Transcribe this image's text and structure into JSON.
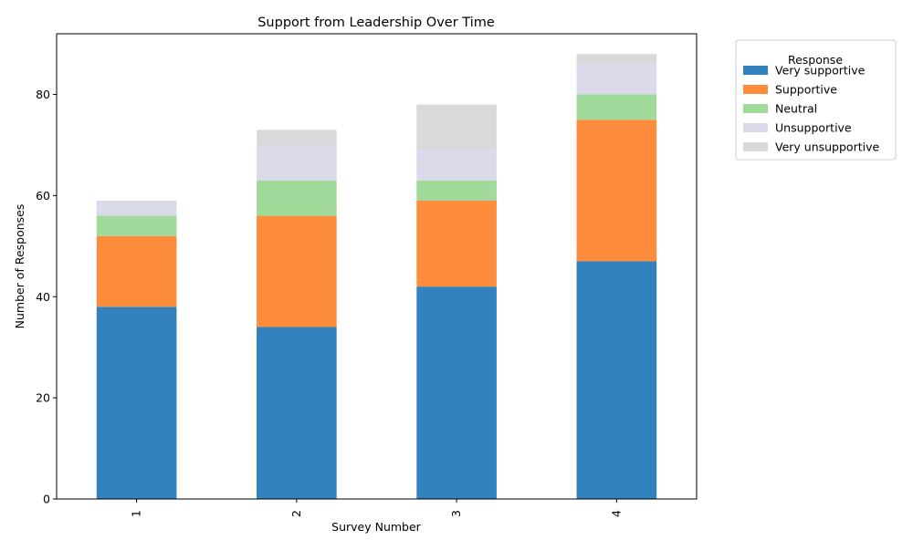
{
  "chart_data": {
    "type": "bar",
    "stacked": true,
    "title": "Support from Leadership Over Time",
    "xlabel": "Survey Number",
    "ylabel": "Number of Responses",
    "categories": [
      "1",
      "2",
      "3",
      "4"
    ],
    "ylim": [
      0,
      92
    ],
    "yticks": [
      0,
      20,
      40,
      60,
      80
    ],
    "grid": false,
    "legend": {
      "title": "Response",
      "placement": "outside-top-right"
    },
    "series": [
      {
        "name": "Very supportive",
        "color": "#3182bd",
        "values": [
          38,
          34,
          42,
          47
        ]
      },
      {
        "name": "Supportive",
        "color": "#fd8d3c",
        "values": [
          14,
          22,
          17,
          28
        ]
      },
      {
        "name": "Neutral",
        "color": "#a1d99b",
        "values": [
          4,
          7,
          4,
          5
        ]
      },
      {
        "name": "Unsupportive",
        "color": "#dadaeb",
        "values": [
          3,
          7,
          6,
          6
        ]
      },
      {
        "name": "Very unsupportive",
        "color": "#d9d9d9",
        "values": [
          0,
          3,
          9,
          2
        ]
      }
    ]
  }
}
